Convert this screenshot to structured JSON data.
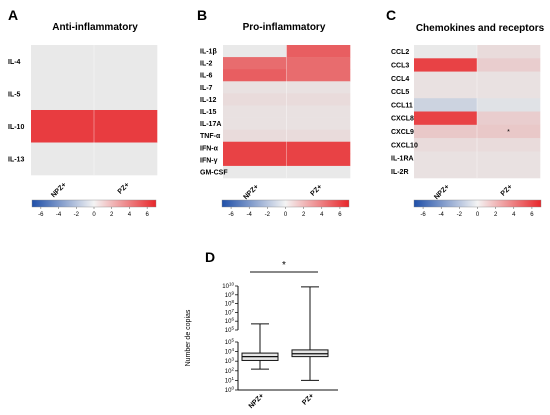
{
  "colors": {
    "low": "#1f4fa8",
    "mid": "#e9e9e9",
    "high": "#e8262a",
    "box_fill": "#e6e6e6",
    "line": "#111111"
  },
  "chart_data": [
    {
      "panel": "A",
      "type": "heatmap",
      "title": "Anti-inflammatory",
      "rows": [
        "IL-4",
        "IL-5",
        "IL-10",
        "IL-13"
      ],
      "columns": [
        "NPZ+",
        "PZ+"
      ],
      "values": [
        [
          0,
          0
        ],
        [
          0,
          0
        ],
        [
          6.2,
          6.2
        ],
        [
          0,
          0
        ]
      ],
      "colorbar": {
        "ticks": [
          "-6",
          "-4",
          "-2",
          "0",
          "2",
          "4",
          "6"
        ],
        "range": [
          -7,
          7
        ]
      }
    },
    {
      "panel": "B",
      "type": "heatmap",
      "title": "Pro-inflammatory",
      "rows": [
        "IL-1β",
        "IL-2",
        "IL-6",
        "IL-7",
        "IL-12",
        "IL-15",
        "IL-17A",
        "TNF-α",
        "IFN-α",
        "IFN-γ",
        "GM-CSF"
      ],
      "columns": [
        "NPZ+",
        "PZ+"
      ],
      "values": [
        [
          0,
          5
        ],
        [
          4.5,
          4.5
        ],
        [
          5,
          4.5
        ],
        [
          0.3,
          0.3
        ],
        [
          0.5,
          0.5
        ],
        [
          0.3,
          0.3
        ],
        [
          0.3,
          0.3
        ],
        [
          0.5,
          0.5
        ],
        [
          6,
          6
        ],
        [
          6,
          6
        ],
        [
          0,
          0
        ]
      ],
      "colorbar": {
        "ticks": [
          "-6",
          "-4",
          "-2",
          "0",
          "2",
          "4",
          "6"
        ],
        "range": [
          -7,
          7
        ]
      }
    },
    {
      "panel": "C",
      "type": "heatmap",
      "title": "Chemokines and receptors",
      "rows": [
        "CCL2",
        "CCL3",
        "CCL4",
        "CCL5",
        "CCL11",
        "CXCL8",
        "CXCL9",
        "CXCL10",
        "IL-1RA",
        "IL-2R"
      ],
      "columns": [
        "NPZ+",
        "PZ+"
      ],
      "values": [
        [
          0,
          0.5
        ],
        [
          6,
          1
        ],
        [
          0.3,
          0.3
        ],
        [
          0.3,
          0.3
        ],
        [
          -1,
          -0.3
        ],
        [
          6,
          1
        ],
        [
          1.2,
          1.2
        ],
        [
          0.5,
          0.5
        ],
        [
          0.3,
          0.3
        ],
        [
          0.3,
          0.3
        ]
      ],
      "annotations": [
        "*"
      ],
      "colorbar": {
        "ticks": [
          "-6",
          "-4",
          "-2",
          "0",
          "2",
          "4",
          "6"
        ],
        "range": [
          -7,
          7
        ]
      }
    },
    {
      "panel": "D",
      "type": "box",
      "ylabel": "Number de copias",
      "yscale": "log",
      "y_axis_break": true,
      "y_ticks_upper": [
        "10^5",
        "10^6",
        "10^7",
        "10^8",
        "10^9",
        "10^10"
      ],
      "y_ticks_lower": [
        "10^0",
        "10^1",
        "10^2",
        "10^3",
        "10^4",
        "10^5"
      ],
      "categories": [
        "NPZ+",
        "PZ+"
      ],
      "boxes": [
        {
          "name": "NPZ+",
          "min": 150,
          "q1": 1200,
          "median": 3000,
          "q3": 7000,
          "max": 500000
        },
        {
          "name": "PZ+",
          "min": 10,
          "q1": 3000,
          "median": 6000,
          "q3": 15000,
          "max": 8000000000
        }
      ],
      "significance": "*"
    }
  ]
}
